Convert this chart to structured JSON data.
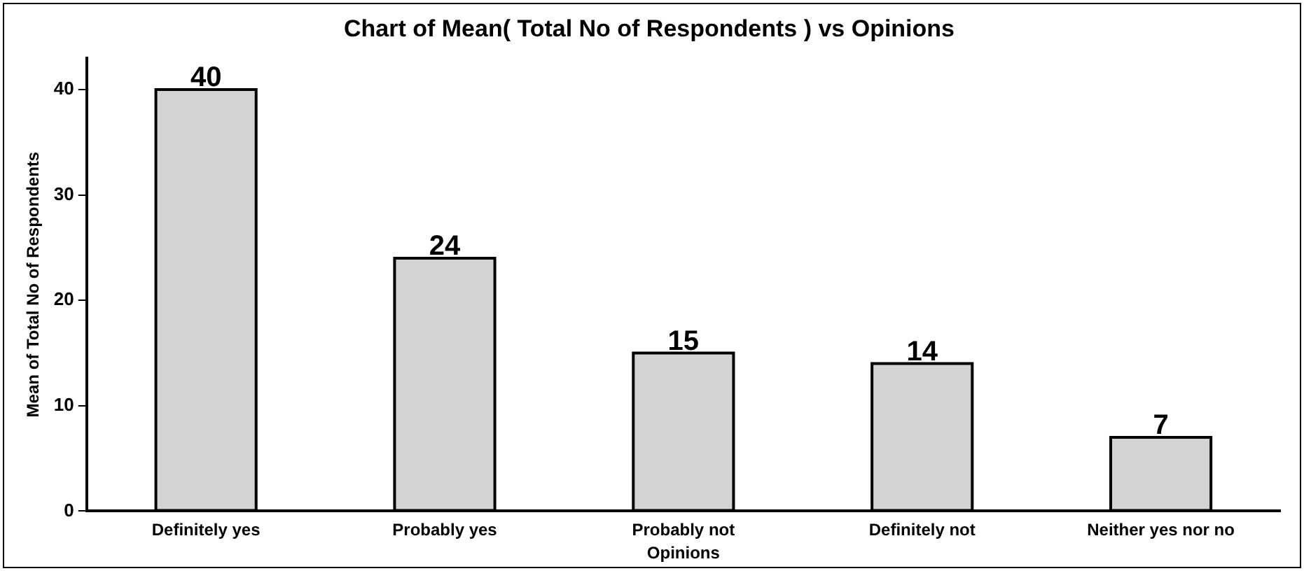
{
  "chart_data": {
    "type": "bar",
    "title": "Chart of Mean( Total No of Respondents ) vs Opinions",
    "xlabel": "Opinions",
    "ylabel": "Mean of Total No of Respondents",
    "categories": [
      "Definitely yes",
      "Probably yes",
      "Probably not",
      "Definitely not",
      "Neither yes nor no"
    ],
    "values": [
      40,
      24,
      15,
      14,
      7
    ],
    "color": "#d3d3d3",
    "ylim": [
      0,
      43
    ],
    "yticks": [
      0,
      10,
      20,
      30,
      40
    ],
    "grid": false,
    "legend": false,
    "data_labels": true
  }
}
